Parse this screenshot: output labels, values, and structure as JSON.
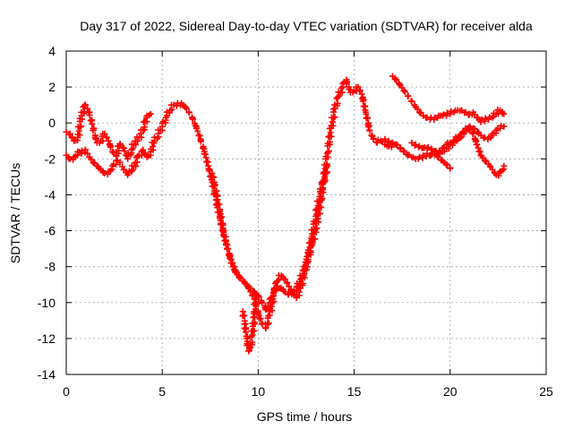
{
  "chart_data": {
    "type": "scatter",
    "title": "Day 317 of 2022, Sidereal Day-to-day VTEC variation (SDTVAR) for receiver alda",
    "xlabel": "GPS time / hours",
    "ylabel": "SDTVAR / TECUs",
    "xlim": [
      0,
      25
    ],
    "ylim": [
      -14,
      4
    ],
    "x_ticks": [
      0,
      5,
      10,
      15,
      20,
      25
    ],
    "y_ticks": [
      -14,
      -12,
      -10,
      -8,
      -6,
      -4,
      -2,
      0,
      2,
      4
    ],
    "grid": true,
    "marker": "+",
    "marker_color": "#ff0000",
    "series": [
      {
        "name": "main",
        "x": [
          0.0,
          0.2,
          0.4,
          0.6,
          0.8,
          1.0,
          1.2,
          1.4,
          1.6,
          1.8,
          2.0,
          2.2,
          2.4,
          2.6,
          2.8,
          3.0,
          3.2,
          3.4,
          3.6,
          3.8,
          4.0,
          4.2,
          4.4,
          4.6,
          4.8,
          5.0,
          5.2,
          5.4,
          5.6,
          5.8,
          6.0,
          6.2,
          6.4,
          6.6,
          6.8,
          7.0,
          7.2,
          7.4,
          7.6,
          7.8,
          8.0,
          8.2,
          8.4,
          8.6,
          8.8,
          9.0,
          9.2,
          9.4,
          9.6,
          9.8,
          10.0,
          10.2,
          10.4,
          10.6,
          10.8,
          11.0,
          11.2,
          11.4,
          11.6,
          11.8,
          12.0,
          12.2,
          12.4,
          12.6,
          12.8,
          13.0,
          13.2,
          13.4,
          13.6,
          13.8,
          14.0,
          14.2,
          14.4,
          14.6,
          14.8,
          15.0,
          15.2,
          15.4,
          15.6,
          15.8,
          16.0,
          16.2,
          16.4,
          16.6,
          16.8,
          17.0
        ],
        "y": [
          -1.8,
          -2.0,
          -1.9,
          -1.6,
          -1.7,
          -1.5,
          -1.9,
          -2.2,
          -2.4,
          -2.6,
          -2.8,
          -2.7,
          -2.4,
          -2.1,
          -2.2,
          -2.6,
          -2.9,
          -2.7,
          -2.2,
          -1.8,
          -1.5,
          -1.9,
          -1.6,
          -1.0,
          -0.6,
          -0.2,
          0.3,
          0.7,
          1.0,
          1.1,
          1.1,
          0.9,
          0.6,
          0.2,
          -0.3,
          -0.9,
          -1.6,
          -2.4,
          -3.3,
          -4.3,
          -5.3,
          -6.2,
          -7.0,
          -7.6,
          -8.2,
          -8.5,
          -8.8,
          -9.0,
          -9.2,
          -9.4,
          -9.6,
          -10.0,
          -10.4,
          -10.0,
          -9.5,
          -9.1,
          -9.2,
          -9.4,
          -9.5,
          -9.4,
          -9.1,
          -8.7,
          -8.2,
          -7.6,
          -6.8,
          -5.9,
          -4.7,
          -3.3,
          -1.7,
          -0.3,
          0.8,
          1.5,
          2.0,
          2.4,
          1.7,
          1.8,
          2.0,
          1.6,
          0.6,
          -0.4,
          -0.9,
          -1.1,
          -1.0,
          -1.2,
          -1.3,
          -1.2
        ]
      },
      {
        "name": "early",
        "x": [
          0.0,
          0.2,
          0.4,
          0.6,
          0.8,
          1.0,
          1.2,
          1.4,
          1.6,
          1.8,
          2.0,
          2.2,
          2.4,
          2.6,
          2.8,
          3.0,
          3.2,
          3.4,
          3.6,
          3.8,
          4.0,
          4.2,
          4.4
        ],
        "y": [
          -0.5,
          -0.6,
          -1.0,
          -0.8,
          0.4,
          1.0,
          0.6,
          -0.3,
          -1.1,
          -1.0,
          -0.6,
          -1.0,
          -1.6,
          -1.8,
          -1.2,
          -1.4,
          -2.0,
          -1.5,
          -1.0,
          -0.8,
          -0.4,
          0.4,
          0.5
        ]
      },
      {
        "name": "dip-branch",
        "x": [
          7.6,
          7.8,
          8.0,
          8.2,
          8.4,
          8.6,
          8.8,
          9.0,
          9.2,
          9.4,
          9.6,
          9.8,
          10.0,
          10.2,
          10.4,
          10.6,
          10.8,
          11.0,
          11.2,
          11.4,
          11.6,
          11.8,
          12.0,
          12.2,
          12.4,
          12.6,
          12.8,
          13.0,
          13.2,
          13.4,
          13.6
        ],
        "y": [
          -2.8,
          -3.8,
          -4.9,
          -6.0,
          -7.0,
          -7.8,
          -8.3,
          -8.6,
          -8.8,
          -9.0,
          -9.4,
          -9.8,
          -10.6,
          -11.2,
          -11.4,
          -10.7,
          -9.6,
          -8.8,
          -8.5,
          -8.7,
          -9.1,
          -9.5,
          -9.7,
          -9.2,
          -8.4,
          -7.4,
          -6.3,
          -5.2,
          -4.1,
          -3.2,
          -2.4
        ]
      },
      {
        "name": "spike",
        "x": [
          9.2,
          9.3,
          9.4,
          9.5,
          9.6,
          9.7,
          9.8,
          9.9
        ],
        "y": [
          -10.5,
          -11.2,
          -12.0,
          -12.7,
          -12.5,
          -11.8,
          -10.8,
          -9.6
        ]
      },
      {
        "name": "late-high",
        "x": [
          17.0,
          17.2,
          17.4,
          17.6,
          17.8,
          18.0,
          18.2,
          18.4,
          18.6,
          18.8,
          19.0,
          19.2,
          19.4,
          19.6,
          19.8,
          20.0,
          20.2,
          20.4,
          20.6,
          20.8,
          21.0,
          21.2,
          21.4,
          21.6,
          21.8,
          22.0,
          22.2,
          22.4,
          22.6,
          22.8
        ],
        "y": [
          2.6,
          2.4,
          2.1,
          1.8,
          1.5,
          1.2,
          0.9,
          0.6,
          0.4,
          0.3,
          0.3,
          0.3,
          0.4,
          0.4,
          0.4,
          0.5,
          0.6,
          0.7,
          0.7,
          0.6,
          0.5,
          0.6,
          0.3,
          0.1,
          0.1,
          0.2,
          0.3,
          0.5,
          0.7,
          0.5
        ]
      },
      {
        "name": "late-low",
        "x": [
          16.6,
          16.8,
          17.0,
          17.2,
          17.4,
          17.6,
          17.8,
          18.0,
          18.2,
          18.4,
          18.6,
          18.8,
          19.0,
          19.2,
          19.4,
          19.6,
          19.8,
          20.0,
          20.2,
          20.4,
          20.6,
          20.8,
          21.0,
          21.2,
          21.4,
          21.6,
          21.8,
          22.0,
          22.2,
          22.4,
          22.6,
          22.8
        ],
        "y": [
          -0.9,
          -1.0,
          -1.1,
          -1.2,
          -1.4,
          -1.6,
          -1.8,
          -1.9,
          -2.0,
          -1.9,
          -1.8,
          -1.7,
          -1.8,
          -1.6,
          -1.7,
          -1.6,
          -1.2,
          -1.1,
          -1.0,
          -0.8,
          -0.6,
          -0.3,
          -0.2,
          -0.6,
          -1.2,
          -1.8,
          -2.1,
          -2.3,
          -2.6,
          -2.9,
          -2.7,
          -2.4
        ]
      },
      {
        "name": "late-mid",
        "x": [
          18.0,
          18.2,
          18.4,
          18.6,
          18.8,
          19.0,
          19.2,
          19.4,
          19.6,
          19.8,
          20.0,
          20.2,
          20.4,
          20.6,
          20.8,
          21.0,
          21.2,
          21.4,
          21.6,
          21.8,
          22.0,
          22.2,
          22.4,
          22.6,
          22.8
        ],
        "y": [
          -1.1,
          -1.2,
          -1.3,
          -1.4,
          -1.4,
          -1.5,
          -1.6,
          -1.7,
          -1.6,
          -1.4,
          -1.2,
          -1.0,
          -0.8,
          -0.6,
          -0.5,
          -0.4,
          -0.3,
          -0.5,
          -0.7,
          -0.8,
          -0.8,
          -0.6,
          -0.4,
          -0.3,
          -0.2
        ]
      },
      {
        "name": "late-tail",
        "x": [
          19.2,
          19.4,
          19.6,
          19.8,
          20.0
        ],
        "y": [
          -1.7,
          -1.9,
          -2.1,
          -2.3,
          -2.5
        ]
      }
    ]
  }
}
